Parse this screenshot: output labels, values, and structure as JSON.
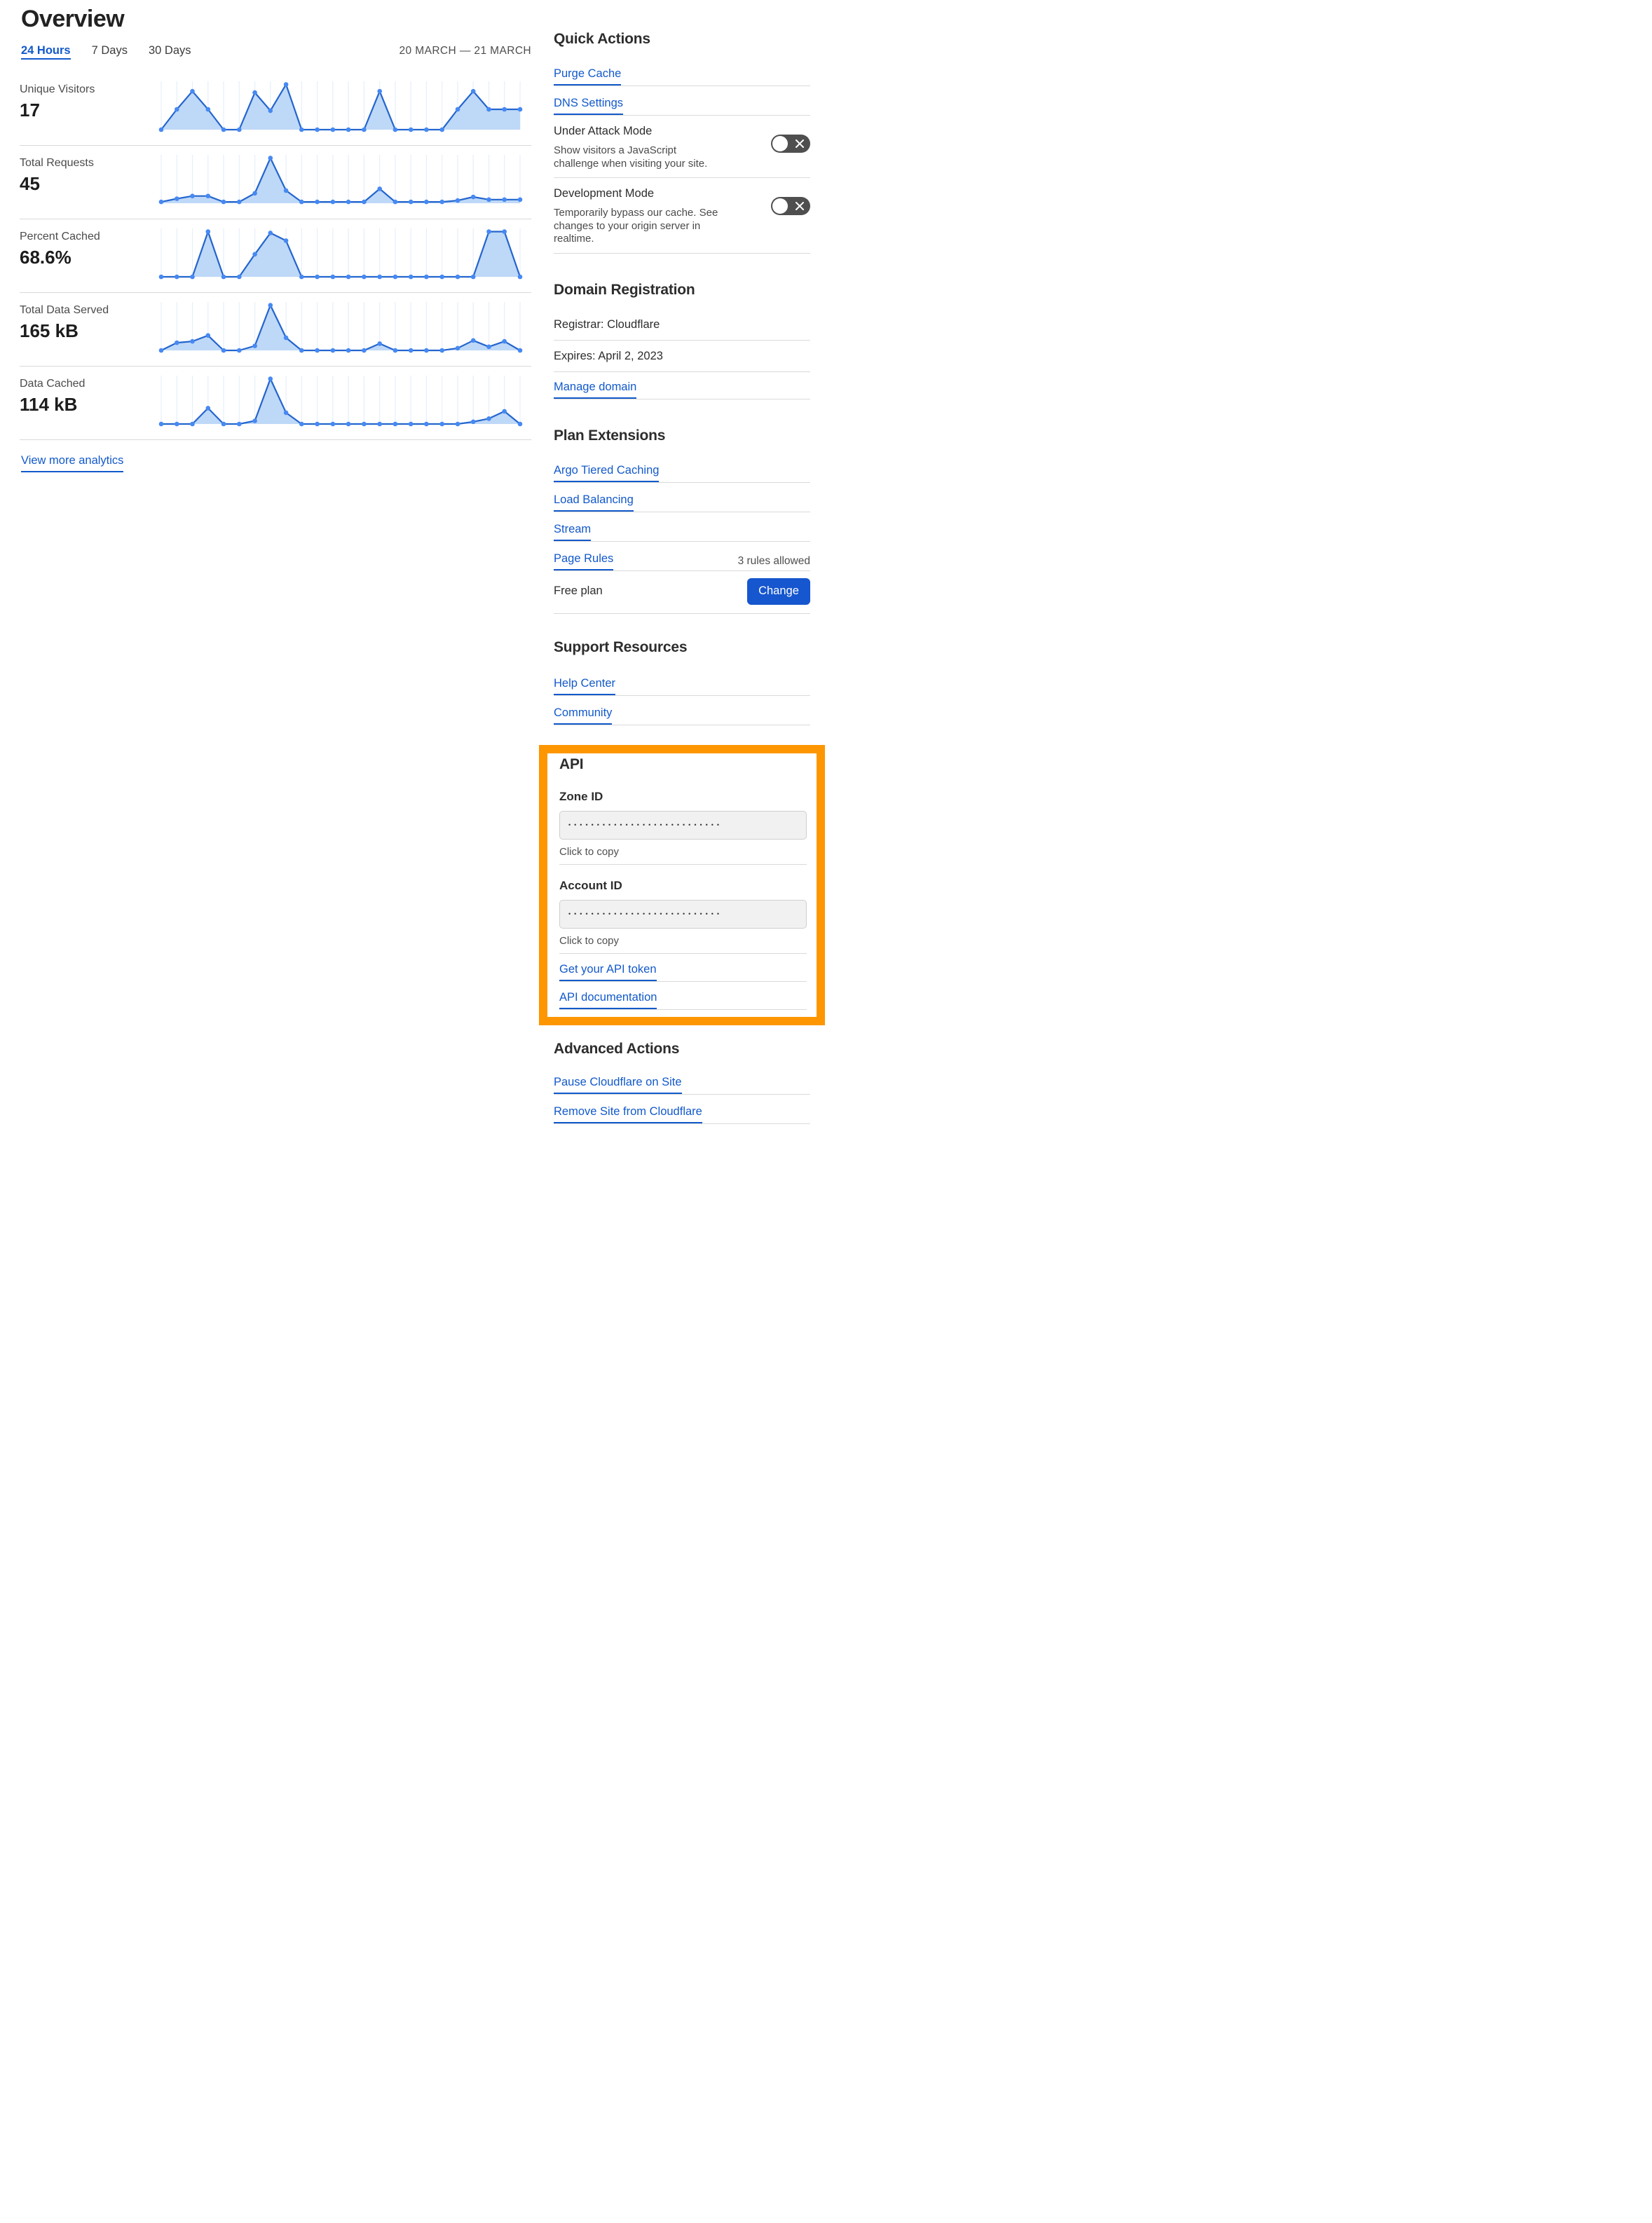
{
  "header": {
    "title": "Overview",
    "date_range": "20 MARCH — 21 MARCH"
  },
  "tabs": [
    {
      "label": "24 Hours",
      "active": true
    },
    {
      "label": "7 Days",
      "active": false
    },
    {
      "label": "30 Days",
      "active": false
    }
  ],
  "view_more_label": "View more analytics",
  "chart_data": [
    {
      "type": "area",
      "title": "Unique Visitors",
      "headline_value": "17",
      "x": "24 hourly points, 20 March – 21 March",
      "ylim": [
        0,
        1
      ],
      "grid": "vertical",
      "relative_values": [
        0,
        0.45,
        0.85,
        0.45,
        0,
        0,
        0.82,
        0.42,
        1,
        0,
        0,
        0,
        0,
        0,
        0.85,
        0,
        0,
        0,
        0,
        0.45,
        0.85,
        0.45,
        0.45,
        0.45
      ]
    },
    {
      "type": "area",
      "title": "Total Requests",
      "headline_value": "45",
      "x": "24 hourly points, 20 March – 21 March",
      "ylim": [
        0,
        1
      ],
      "grid": "vertical",
      "relative_values": [
        0.03,
        0.1,
        0.16,
        0.16,
        0.03,
        0.03,
        0.22,
        1,
        0.28,
        0.03,
        0.03,
        0.03,
        0.03,
        0.03,
        0.32,
        0.03,
        0.03,
        0.03,
        0.03,
        0.06,
        0.14,
        0.08,
        0.08,
        0.08
      ]
    },
    {
      "type": "area",
      "title": "Percent Cached",
      "headline_value": "68.6%",
      "x": "24 hourly points, 20 March – 21 March",
      "ylim": [
        0,
        1
      ],
      "grid": "vertical",
      "relative_values": [
        0,
        0,
        0,
        1,
        0,
        0,
        0.5,
        0.97,
        0.8,
        0,
        0,
        0,
        0,
        0,
        0,
        0,
        0,
        0,
        0,
        0,
        0,
        1,
        1,
        0
      ]
    },
    {
      "type": "area",
      "title": "Total Data Served",
      "headline_value": "165 kB",
      "x": "24 hourly points, 20 March – 21 March",
      "ylim": [
        0,
        1
      ],
      "grid": "vertical",
      "relative_values": [
        0,
        0.17,
        0.2,
        0.33,
        0,
        0,
        0.1,
        1,
        0.28,
        0,
        0,
        0,
        0,
        0,
        0.15,
        0,
        0,
        0,
        0,
        0.05,
        0.22,
        0.08,
        0.2,
        0
      ]
    },
    {
      "type": "area",
      "title": "Data Cached",
      "headline_value": "114 kB",
      "x": "24 hourly points, 20 March – 21 March",
      "ylim": [
        0,
        1
      ],
      "grid": "vertical",
      "relative_values": [
        0,
        0,
        0,
        0.35,
        0,
        0,
        0.07,
        1,
        0.25,
        0,
        0,
        0,
        0,
        0,
        0,
        0,
        0,
        0,
        0,
        0,
        0.05,
        0.12,
        0.28,
        0
      ]
    }
  ],
  "quick_actions": {
    "heading": "Quick Actions",
    "purge_cache_label": "Purge Cache",
    "dns_settings_label": "DNS Settings",
    "under_attack": {
      "label": "Under Attack Mode",
      "description": "Show visitors a JavaScript challenge when visiting your site.",
      "enabled": false
    },
    "development_mode": {
      "label": "Development Mode",
      "description": "Temporarily bypass our cache. See changes to your origin server in realtime.",
      "enabled": false
    }
  },
  "domain_registration": {
    "heading": "Domain Registration",
    "registrar": "Registrar: Cloudflare",
    "expires": "Expires: April 2, 2023",
    "manage_label": "Manage domain"
  },
  "plan_extensions": {
    "heading": "Plan Extensions",
    "argo_label": "Argo Tiered Caching",
    "load_balancing_label": "Load Balancing",
    "stream_label": "Stream",
    "page_rules_label": "Page Rules",
    "page_rules_note": "3 rules allowed",
    "plan_label": "Free plan",
    "change_button_label": "Change"
  },
  "support_resources": {
    "heading": "Support Resources",
    "help_center_label": "Help Center",
    "community_label": "Community"
  },
  "api": {
    "heading": "API",
    "zone_id_label": "Zone ID",
    "zone_id_masked": "•••••••••••••••••••••••••••",
    "zone_id_hint": "Click to copy",
    "account_id_label": "Account ID",
    "account_id_masked": "•••••••••••••••••••••••••••",
    "account_id_hint": "Click to copy",
    "get_token_label": "Get your API token",
    "api_docs_label": "API documentation"
  },
  "advanced_actions": {
    "heading": "Advanced Actions",
    "pause_label": "Pause Cloudflare on Site",
    "remove_label": "Remove Site from Cloudflare"
  },
  "colors": {
    "link_blue": "#1259cb",
    "button_blue": "#1656ce",
    "highlight_orange": "#fd9600",
    "chart_line": "#2365ce",
    "chart_fill": "#bed8f7",
    "chart_marker": "#4789f2",
    "chart_grid": "#e7eefa",
    "toggle_off_gray": "#4f4f4f"
  }
}
